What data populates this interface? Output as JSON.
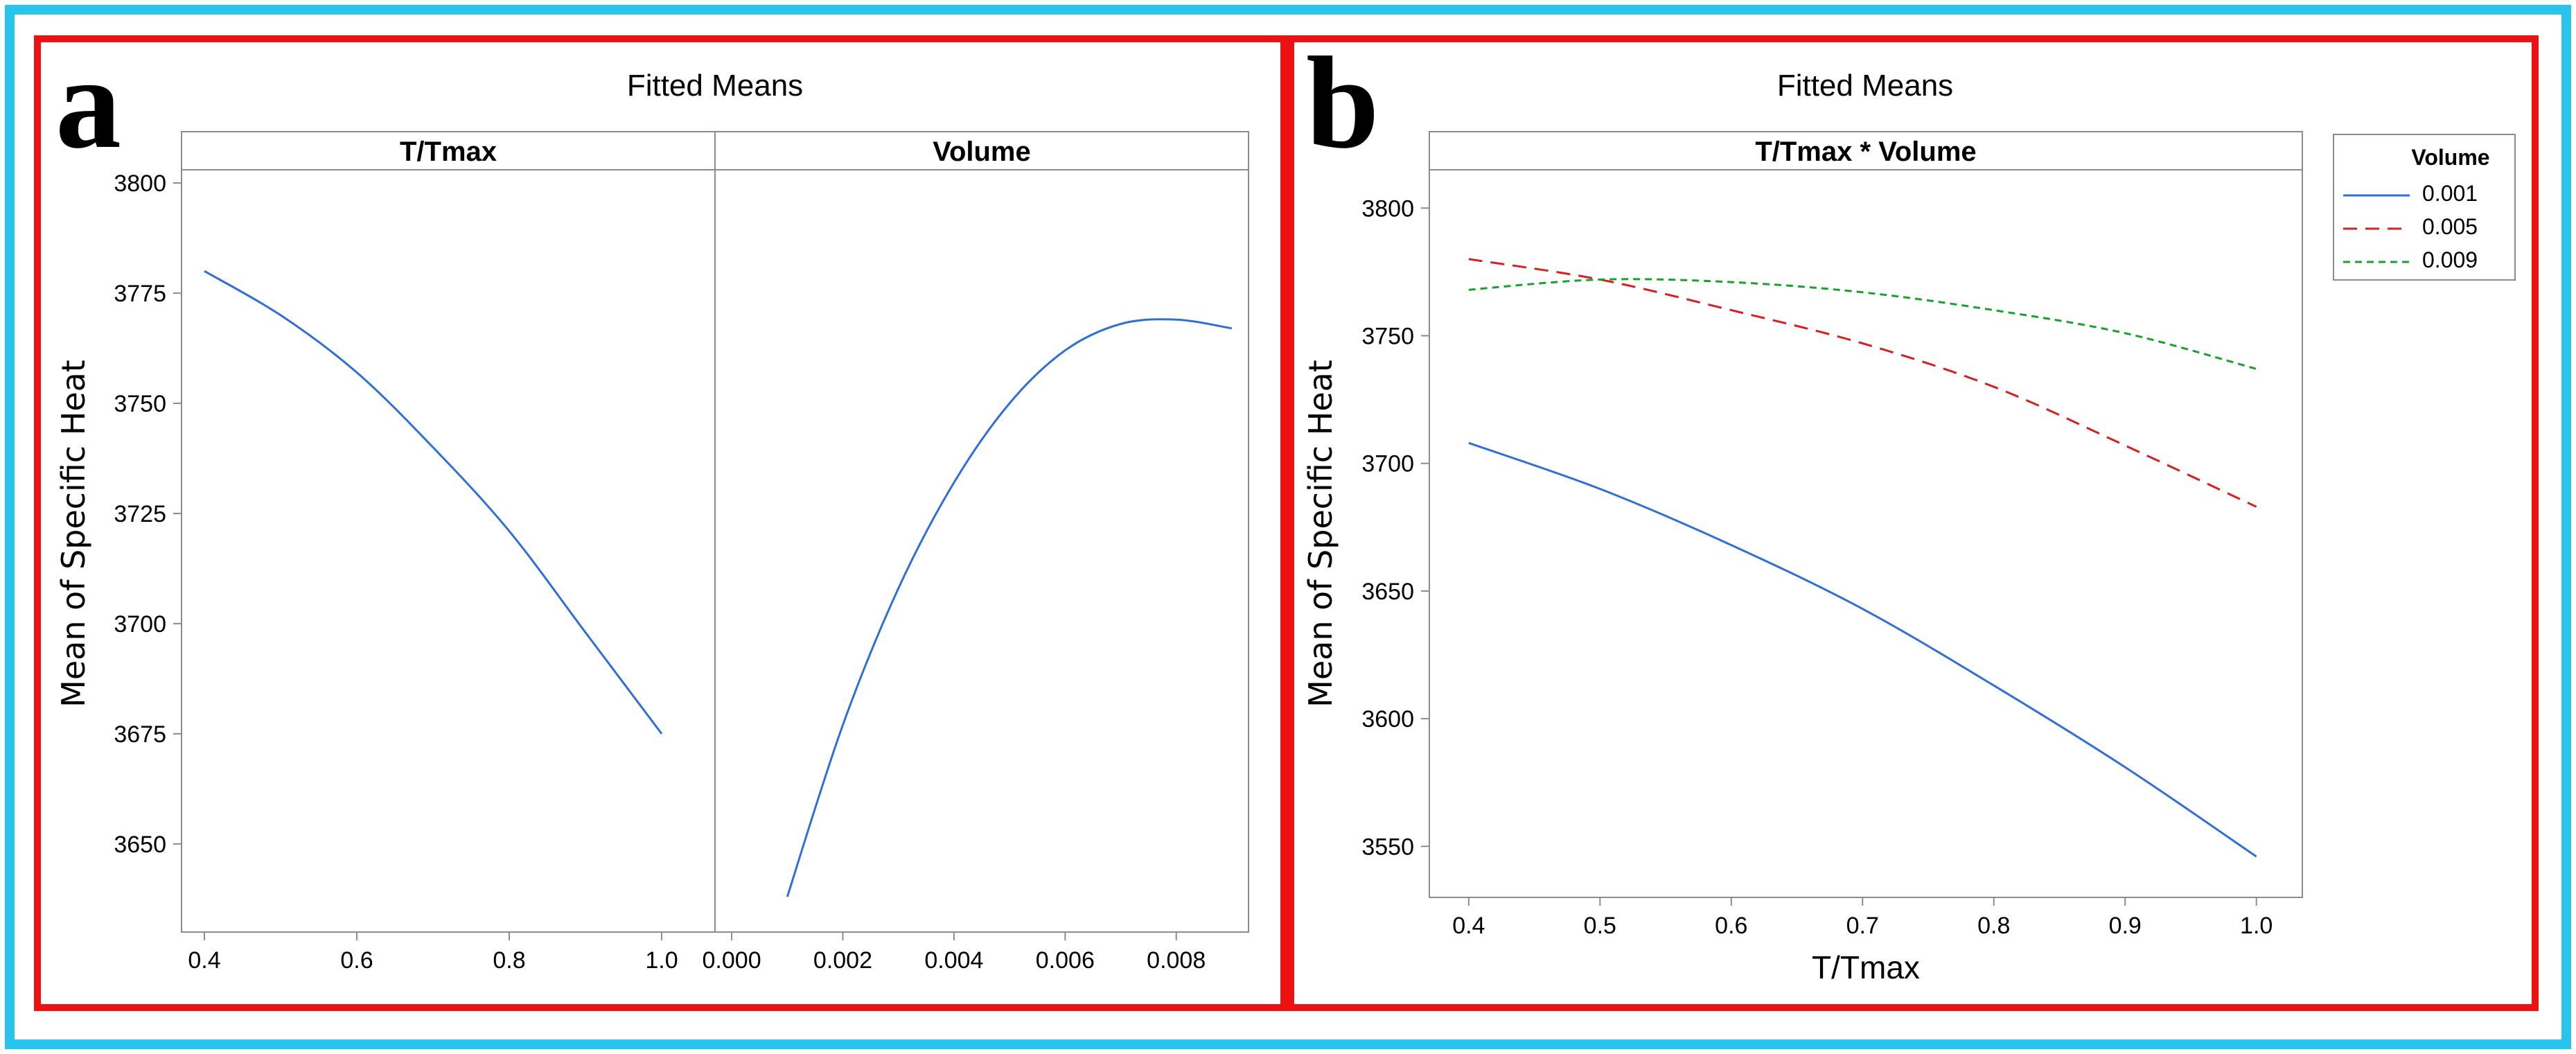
{
  "colors": {
    "outer_border": "#29c4ee",
    "panel_border": "#ee1111",
    "series_0001": "#2f6fd6",
    "series_0005": "#d62020",
    "series_0009": "#17a32a",
    "axis": "#8c8c8c"
  },
  "panels": [
    {
      "letter": "a",
      "title": "Fitted Means"
    },
    {
      "letter": "b",
      "title": "Fitted Means"
    }
  ],
  "chart_data": [
    {
      "type": "line",
      "title": "Fitted Means",
      "ylabel": "Mean of Specific Heat",
      "ylim": [
        3630,
        3803
      ],
      "yticks": [
        3650,
        3675,
        3700,
        3725,
        3750,
        3775,
        3800
      ],
      "facets": [
        {
          "strip": "T/Tmax",
          "xlim": [
            0.37,
            1.07
          ],
          "xticks": [
            0.4,
            0.6,
            0.8,
            1.0
          ],
          "xtick_labels": [
            "0.4",
            "0.6",
            "0.8",
            "1.0"
          ],
          "series": [
            {
              "name": "T/Tmax",
              "x": [
                0.4,
                0.5,
                0.6,
                0.7,
                0.8,
                0.9,
                1.0
              ],
              "y": [
                3780,
                3770,
                3757,
                3740,
                3721,
                3698,
                3675
              ]
            }
          ]
        },
        {
          "strip": "Volume",
          "xlim": [
            -0.0003,
            0.0093
          ],
          "xticks": [
            0.0,
            0.002,
            0.004,
            0.006,
            0.008
          ],
          "xtick_labels": [
            "0.000",
            "0.002",
            "0.004",
            "0.006",
            "0.008"
          ],
          "series": [
            {
              "name": "Volume",
              "x": [
                0.001,
                0.002,
                0.003,
                0.004,
                0.005,
                0.006,
                0.007,
                0.008,
                0.009
              ],
              "y": [
                3638,
                3677,
                3708,
                3732,
                3750,
                3762,
                3768,
                3769,
                3767
              ]
            }
          ]
        }
      ]
    },
    {
      "type": "line",
      "title": "Fitted Means",
      "strip": "T/Tmax * Volume",
      "xlabel": "T/Tmax",
      "ylabel": "Mean of Specific Heat",
      "xlim": [
        0.37,
        1.035
      ],
      "xticks": [
        0.4,
        0.5,
        0.6,
        0.7,
        0.8,
        0.9,
        1.0
      ],
      "xtick_labels": [
        "0.4",
        "0.5",
        "0.6",
        "0.7",
        "0.8",
        "0.9",
        "1.0"
      ],
      "ylim": [
        3530,
        3815
      ],
      "yticks": [
        3550,
        3600,
        3650,
        3700,
        3750,
        3800
      ],
      "legend": {
        "title": "Volume",
        "position": "right"
      },
      "series": [
        {
          "name": "0.001",
          "style": "solid",
          "x": [
            0.4,
            0.5,
            0.6,
            0.7,
            0.8,
            0.9,
            1.0
          ],
          "y": [
            3708,
            3690,
            3668,
            3643,
            3613,
            3581,
            3546
          ]
        },
        {
          "name": "0.005",
          "style": "dashed",
          "x": [
            0.4,
            0.5,
            0.6,
            0.7,
            0.8,
            0.9,
            1.0
          ],
          "y": [
            3780,
            3772,
            3760,
            3747,
            3730,
            3707,
            3683
          ]
        },
        {
          "name": "0.009",
          "style": "dotted",
          "x": [
            0.4,
            0.5,
            0.6,
            0.7,
            0.8,
            0.9,
            1.0
          ],
          "y": [
            3768,
            3772,
            3771,
            3767,
            3760,
            3751,
            3737
          ]
        }
      ]
    }
  ]
}
